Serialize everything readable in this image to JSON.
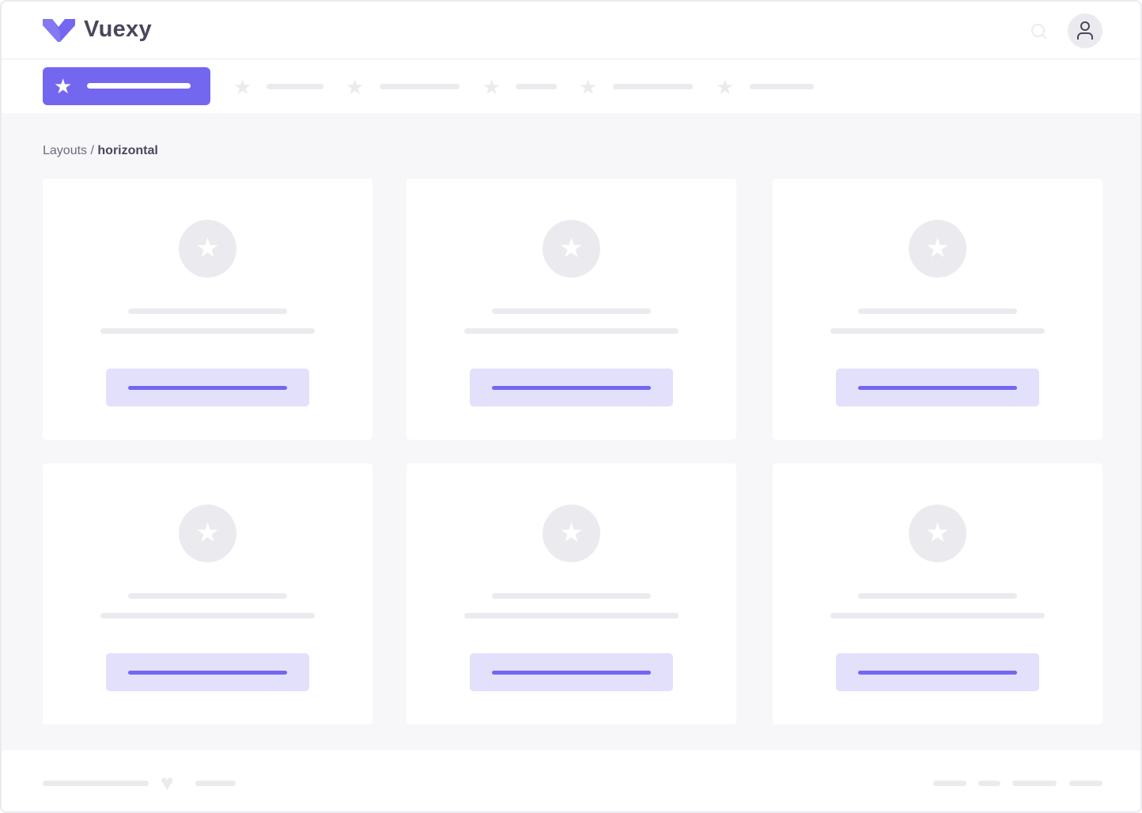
{
  "header": {
    "brand": "Vuexy",
    "logo_icon": "vuexy-logo",
    "search_icon": "search-icon",
    "user_icon": "user-icon"
  },
  "nav": {
    "active_icon": "star-icon",
    "items_icon": "star-icon"
  },
  "breadcrumb": {
    "parent": "Layouts",
    "separator": " / ",
    "current": "horizontal"
  },
  "footer": {
    "heart_icon": "heart-icon"
  },
  "colors": {
    "primary": "#7367f0",
    "primary_light": "#e3e0fb",
    "placeholder": "#ebebef",
    "text": "#4b465c",
    "background": "#f7f7f9"
  }
}
